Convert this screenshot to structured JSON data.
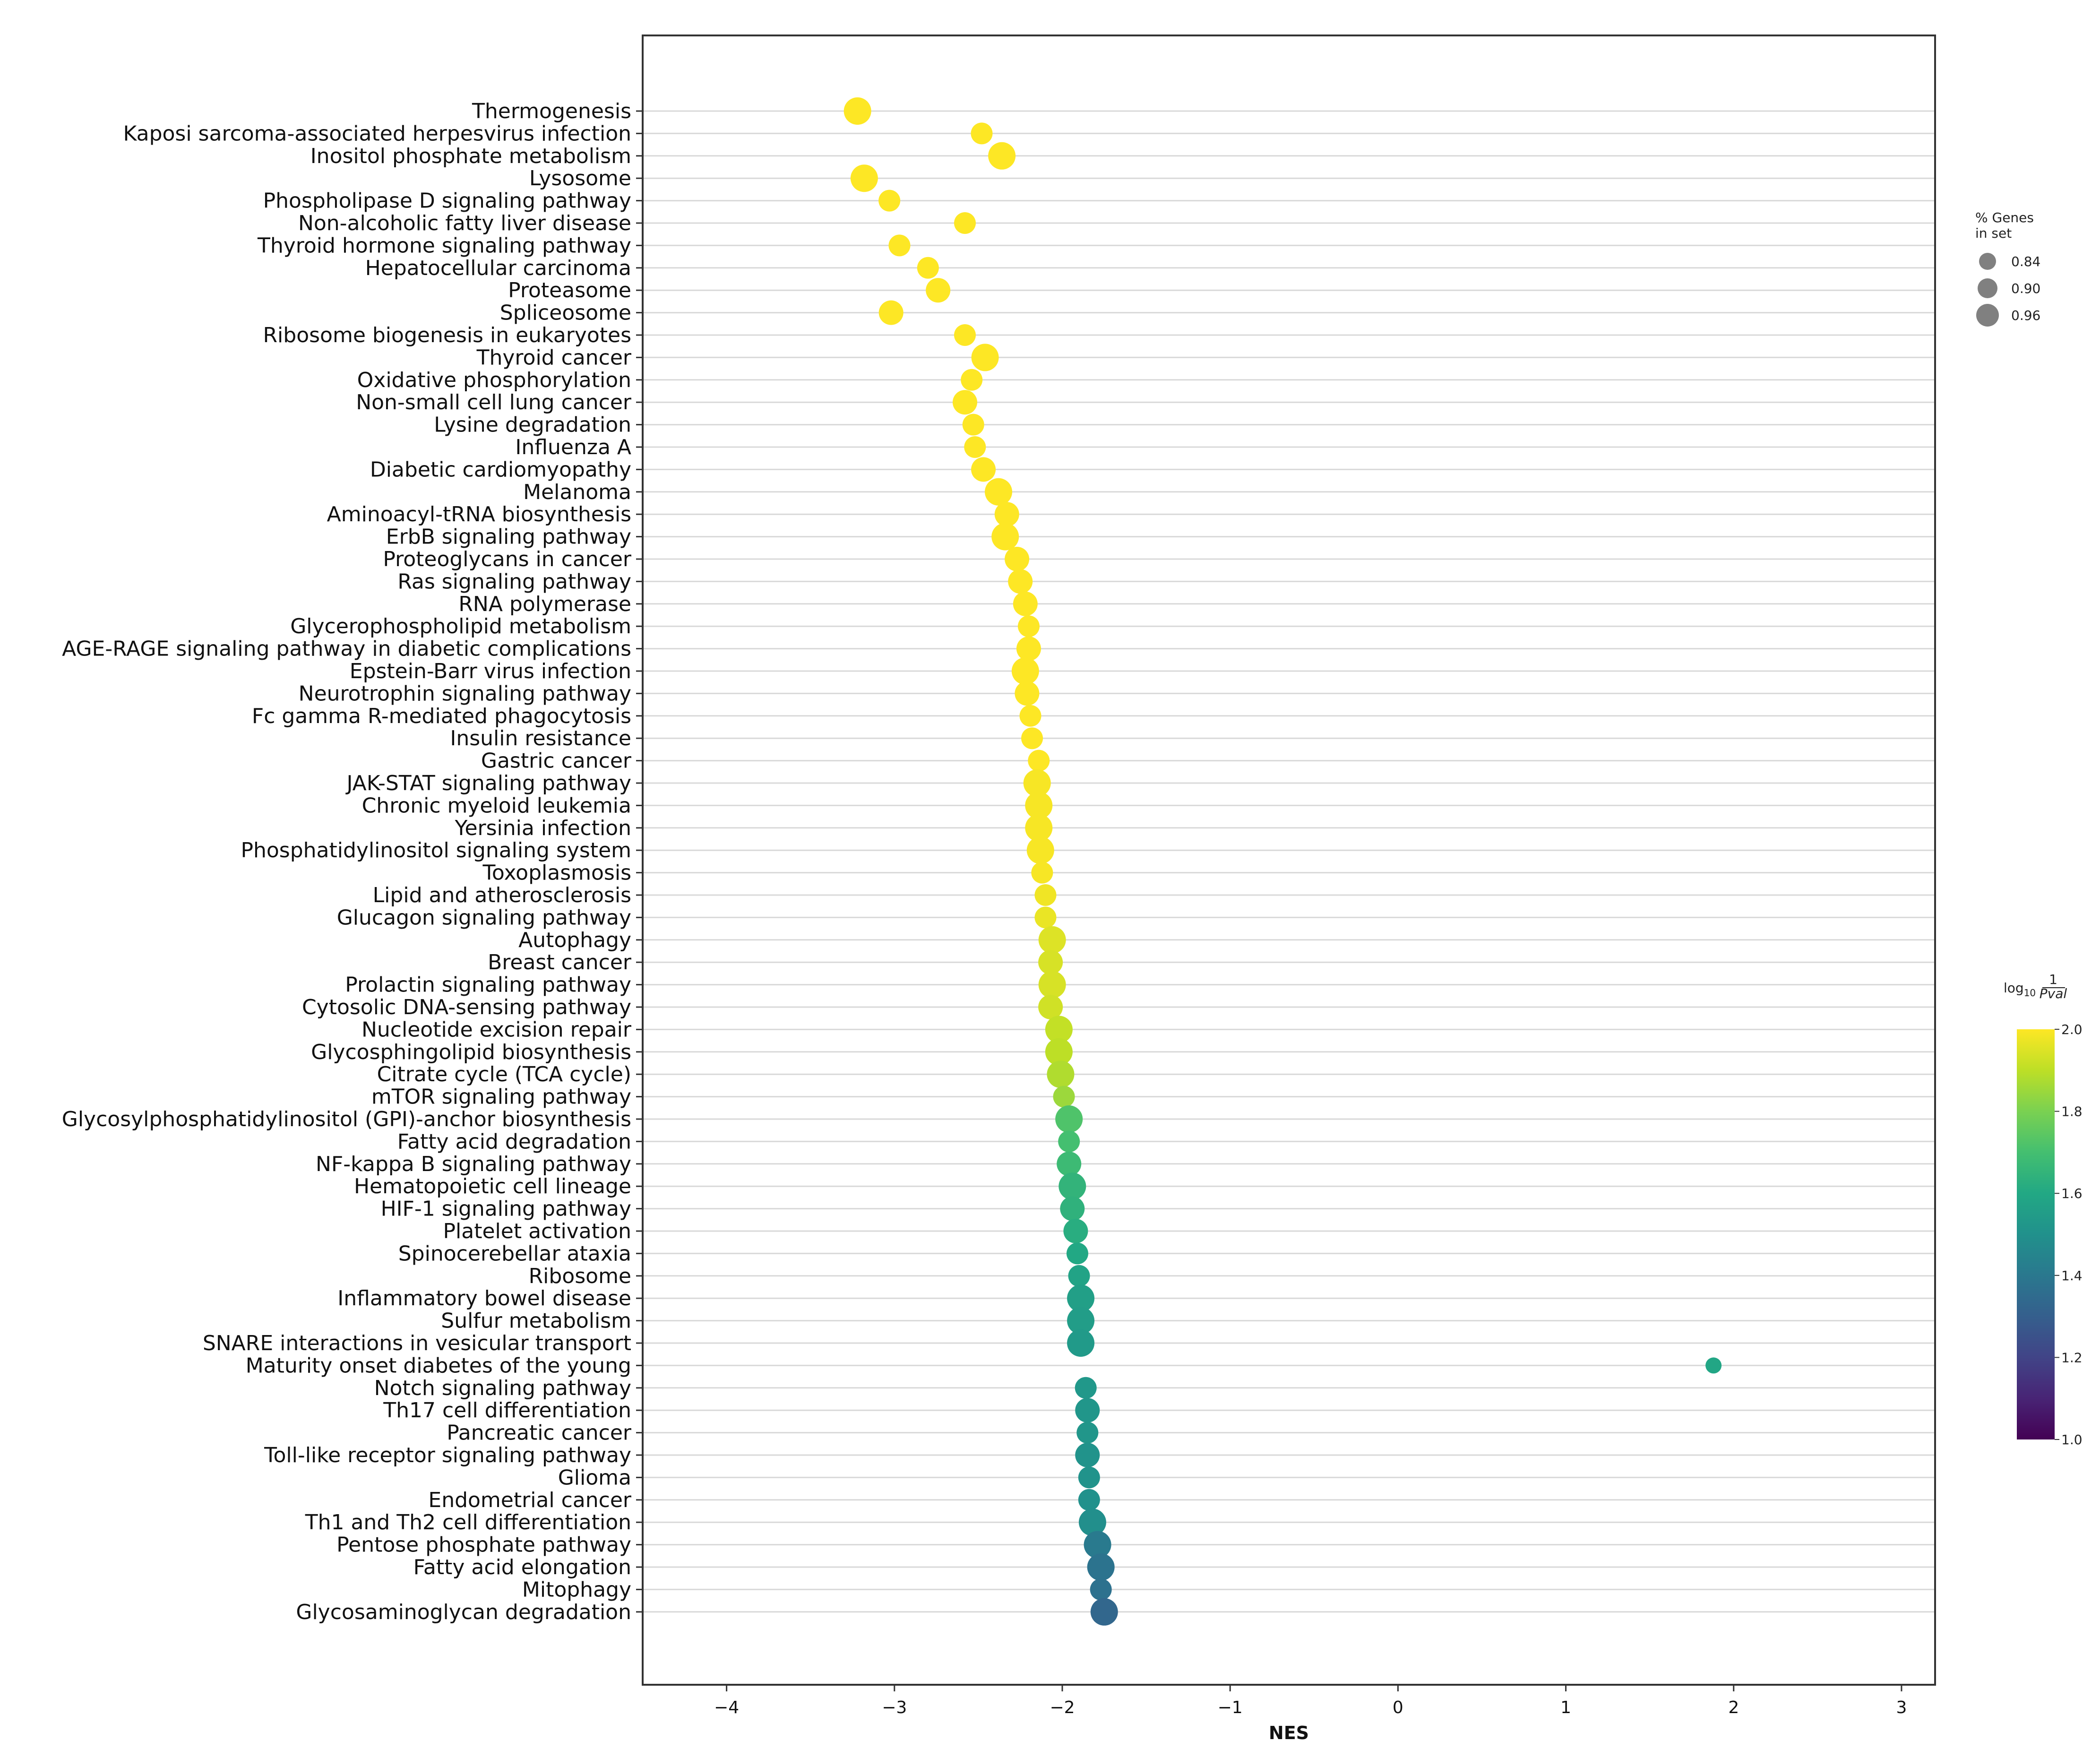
{
  "chart_data": {
    "type": "scatter",
    "xlabel": "NES",
    "ylabel": "",
    "title": "",
    "xlim": [
      -4.5,
      3.2
    ],
    "xticks": [
      -4,
      -3,
      -2,
      -1,
      0,
      1,
      2,
      3
    ],
    "xtick_labels": [
      "−4",
      "−3",
      "−2",
      "−1",
      "0",
      "1",
      "2",
      "3"
    ],
    "grid": "horizontal lines per category",
    "categories": [
      "Thermogenesis",
      "Kaposi sarcoma-associated herpesvirus infection",
      "Inositol phosphate metabolism",
      "Lysosome",
      "Phospholipase D signaling pathway",
      "Non-alcoholic fatty liver disease",
      "Thyroid hormone signaling pathway",
      "Hepatocellular carcinoma",
      "Proteasome",
      "Spliceosome",
      "Ribosome biogenesis in eukaryotes",
      "Thyroid cancer",
      "Oxidative phosphorylation",
      "Non-small cell lung cancer",
      "Lysine degradation",
      "Influenza A",
      "Diabetic cardiomyopathy",
      "Melanoma",
      "Aminoacyl-tRNA biosynthesis",
      "ErbB signaling pathway",
      "Proteoglycans in cancer",
      "Ras signaling pathway",
      "RNA polymerase",
      "Glycerophospholipid metabolism",
      "AGE-RAGE signaling pathway in diabetic complications",
      "Epstein-Barr virus infection",
      "Neurotrophin signaling pathway",
      "Fc gamma R-mediated phagocytosis",
      "Insulin resistance",
      "Gastric cancer",
      "JAK-STAT signaling pathway",
      "Chronic myeloid leukemia",
      "Yersinia infection",
      "Phosphatidylinositol signaling system",
      "Toxoplasmosis",
      "Lipid and atherosclerosis",
      "Glucagon signaling pathway",
      "Autophagy",
      "Breast cancer",
      "Prolactin signaling pathway",
      "Cytosolic DNA-sensing pathway",
      "Nucleotide excision repair",
      "Glycosphingolipid biosynthesis",
      "Citrate cycle (TCA cycle)",
      "mTOR signaling pathway",
      "Glycosylphosphatidylinositol (GPI)-anchor biosynthesis",
      "Fatty acid degradation",
      "NF-kappa B signaling pathway",
      "Hematopoietic cell lineage",
      "HIF-1 signaling pathway",
      "Platelet activation",
      "Spinocerebellar ataxia",
      "Ribosome",
      "Inflammatory bowel disease",
      "Sulfur metabolism",
      "SNARE interactions in vesicular transport",
      "Maturity onset diabetes of the young",
      "Notch signaling pathway",
      "Th17 cell differentiation",
      "Pancreatic cancer",
      "Toll-like receptor signaling pathway",
      "Glioma",
      "Endometrial cancer",
      "Th1 and Th2 cell differentiation",
      "Pentose phosphate pathway",
      "Fatty acid elongation",
      "Mitophagy",
      "Glycosaminoglycan degradation"
    ],
    "nes": [
      -3.22,
      -2.48,
      -2.36,
      -3.18,
      -3.03,
      -2.58,
      -2.97,
      -2.8,
      -2.74,
      -3.02,
      -2.58,
      -2.46,
      -2.54,
      -2.58,
      -2.53,
      -2.52,
      -2.47,
      -2.38,
      -2.33,
      -2.34,
      -2.27,
      -2.25,
      -2.22,
      -2.2,
      -2.2,
      -2.22,
      -2.21,
      -2.19,
      -2.18,
      -2.14,
      -2.15,
      -2.14,
      -2.14,
      -2.13,
      -2.12,
      -2.1,
      -2.1,
      -2.06,
      -2.07,
      -2.06,
      -2.07,
      -2.02,
      -2.02,
      -2.01,
      -1.99,
      -1.96,
      -1.96,
      -1.96,
      -1.94,
      -1.94,
      -1.92,
      -1.91,
      -1.9,
      -1.89,
      -1.89,
      -1.89,
      1.88,
      -1.86,
      -1.85,
      -1.85,
      -1.85,
      -1.84,
      -1.84,
      -1.82,
      -1.79,
      -1.77,
      -1.77,
      -1.75
    ],
    "log10_1_over_pval": [
      2.0,
      2.0,
      2.0,
      2.0,
      2.0,
      2.0,
      2.0,
      2.0,
      2.0,
      2.0,
      2.0,
      2.0,
      2.0,
      2.0,
      2.0,
      2.0,
      2.0,
      2.0,
      2.0,
      2.0,
      2.0,
      2.0,
      2.0,
      2.0,
      2.0,
      2.0,
      2.0,
      2.0,
      2.0,
      2.0,
      1.99,
      1.99,
      1.99,
      1.99,
      1.99,
      1.98,
      1.97,
      1.95,
      1.94,
      1.94,
      1.93,
      1.91,
      1.9,
      1.88,
      1.85,
      1.72,
      1.7,
      1.68,
      1.65,
      1.64,
      1.62,
      1.6,
      1.58,
      1.56,
      1.55,
      1.54,
      1.59,
      1.53,
      1.52,
      1.52,
      1.51,
      1.51,
      1.5,
      1.49,
      1.41,
      1.38,
      1.37,
      1.33
    ],
    "pct_genes_in_set": [
      0.9,
      0.86,
      0.9,
      0.9,
      0.86,
      0.86,
      0.86,
      0.86,
      0.88,
      0.88,
      0.86,
      0.9,
      0.86,
      0.88,
      0.86,
      0.86,
      0.88,
      0.9,
      0.88,
      0.9,
      0.88,
      0.88,
      0.88,
      0.86,
      0.88,
      0.9,
      0.88,
      0.86,
      0.86,
      0.86,
      0.9,
      0.9,
      0.9,
      0.9,
      0.86,
      0.86,
      0.86,
      0.9,
      0.88,
      0.9,
      0.88,
      0.9,
      0.9,
      0.9,
      0.86,
      0.9,
      0.86,
      0.88,
      0.9,
      0.88,
      0.88,
      0.86,
      0.86,
      0.9,
      0.9,
      0.9,
      0.82,
      0.86,
      0.88,
      0.86,
      0.88,
      0.86,
      0.86,
      0.9,
      0.9,
      0.9,
      0.86,
      0.9
    ],
    "size_legend": {
      "title_line1": "% Genes",
      "title_line2": "in set",
      "values": [
        0.84,
        0.9,
        0.96
      ],
      "labels": [
        "0.84",
        "0.90",
        "0.96"
      ]
    },
    "colorbar": {
      "title_prefix": "log",
      "title_sub": "10",
      "title_num": "1",
      "title_den": "Pval",
      "range": [
        1.0,
        2.0
      ],
      "ticks": [
        1.0,
        1.2,
        1.4,
        1.6,
        1.8,
        2.0
      ],
      "tick_labels": [
        "1.0",
        "1.2",
        "1.4",
        "1.6",
        "1.8",
        "2.0"
      ],
      "colormap": "viridis"
    },
    "colors": {
      "grid": "#d9d9d9",
      "frame": "#333333",
      "legend_marker": "#808080"
    }
  }
}
